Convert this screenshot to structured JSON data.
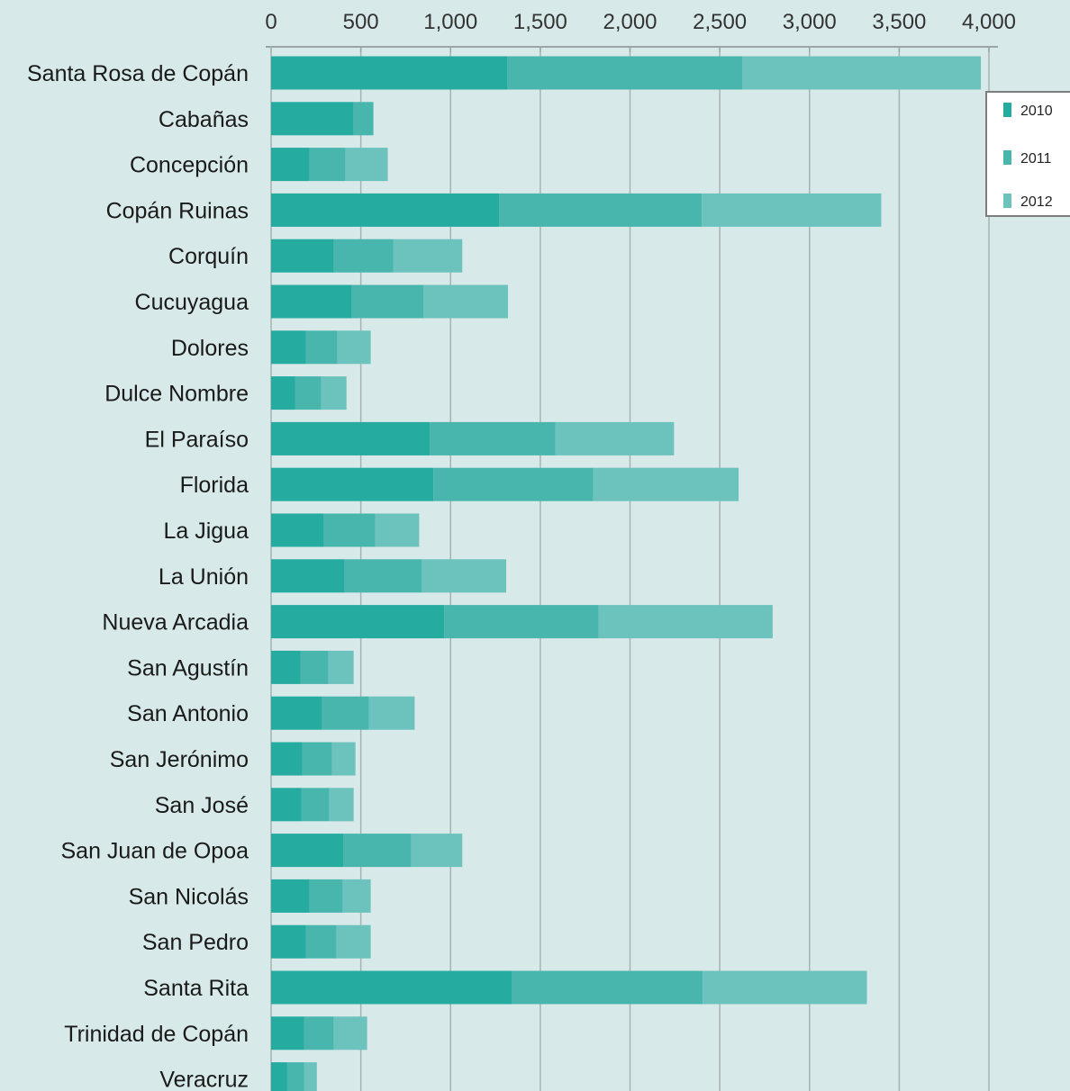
{
  "chart_data": {
    "type": "bar",
    "orientation": "horizontal",
    "stacked": true,
    "title": "",
    "xlabel": "",
    "ylabel": "",
    "xlim": [
      0,
      4000
    ],
    "x_ticks": [
      0,
      500,
      1000,
      1500,
      2000,
      2500,
      3000,
      3500,
      4000
    ],
    "x_tick_labels": [
      "0",
      "500",
      "1,000",
      "1,500",
      "2,000",
      "2,500",
      "3,000",
      "3,500",
      "4,000"
    ],
    "x_axis_position": "top",
    "grid": true,
    "legend_position": "right",
    "categories": [
      "Santa Rosa de Copán",
      "Cabañas",
      "Concepción",
      "Copán Ruinas",
      "Corquín",
      "Cucuyagua",
      "Dolores",
      "Dulce Nombre",
      "El Paraíso",
      "Florida",
      "La Jigua",
      "La Unión",
      "Nueva Arcadia",
      "San Agustín",
      "San Antonio",
      "San Jerónimo",
      "San José",
      "San Juan de Opoa",
      "San Nicolás",
      "San Pedro",
      "Santa Rita",
      "Trinidad de Copán",
      "Veracruz"
    ],
    "series": [
      {
        "name": "2010",
        "color": "#26aba0",
        "values": [
          1315,
          460,
          215,
          1270,
          350,
          450,
          195,
          135,
          885,
          905,
          295,
          410,
          965,
          165,
          285,
          175,
          170,
          405,
          215,
          195,
          1340,
          185,
          90
        ]
      },
      {
        "name": "2011",
        "color": "#49b6ae",
        "values": [
          1310,
          110,
          200,
          1130,
          330,
          400,
          175,
          145,
          700,
          890,
          285,
          430,
          860,
          155,
          260,
          165,
          155,
          375,
          185,
          170,
          1065,
          165,
          95
        ]
      },
      {
        "name": "2012",
        "color": "#6cc2bd",
        "values": [
          1330,
          0,
          235,
          1000,
          385,
          470,
          185,
          140,
          660,
          810,
          245,
          470,
          970,
          140,
          255,
          130,
          135,
          285,
          155,
          190,
          915,
          185,
          70
        ]
      }
    ]
  }
}
